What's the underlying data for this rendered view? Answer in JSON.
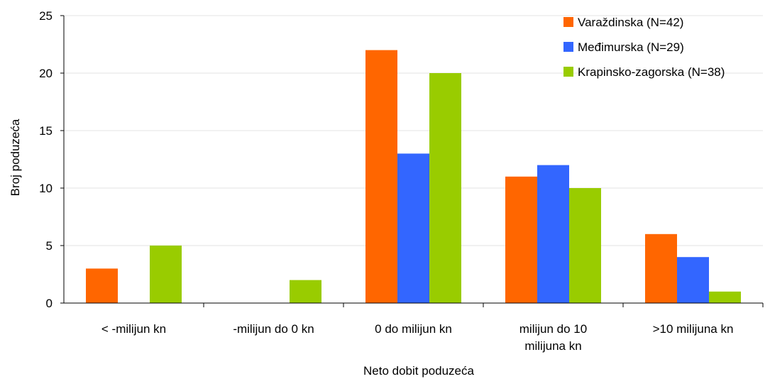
{
  "chart_data": {
    "type": "bar",
    "title": "",
    "xlabel": "Neto dobit poduzeća",
    "ylabel": "Broj poduzeća",
    "ylim": [
      0,
      25
    ],
    "yticks": [
      0,
      5,
      10,
      15,
      20,
      25
    ],
    "grid": true,
    "legend_position": "top-right",
    "categories": [
      [
        "< -milijun kn"
      ],
      [
        "-milijun do 0 kn"
      ],
      [
        "0 do milijun kn"
      ],
      [
        "milijun do 10",
        "milijuna kn"
      ],
      [
        ">10 milijuna kn"
      ]
    ],
    "series": [
      {
        "name": "Varaždinska (N=42)",
        "color": "#ff6600",
        "values": [
          3,
          0,
          22,
          11,
          6
        ]
      },
      {
        "name": "Međimurska (N=29)",
        "color": "#3366ff",
        "values": [
          0,
          0,
          13,
          12,
          4
        ]
      },
      {
        "name": "Krapinsko-zagorska (N=38)",
        "color": "#99cc00",
        "values": [
          5,
          2,
          20,
          10,
          1
        ]
      }
    ]
  }
}
